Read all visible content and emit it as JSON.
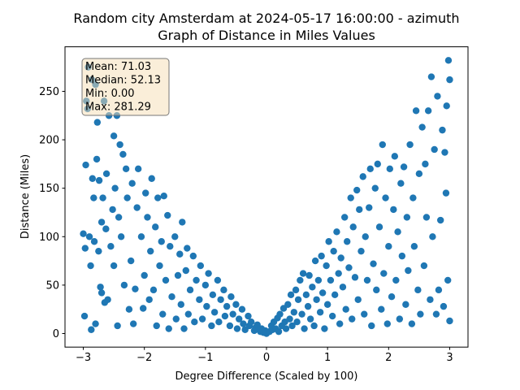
{
  "chart_data": {
    "type": "scatter",
    "title": "Random city Amsterdam at 2024-05-17 16:00:00  - azimuth",
    "subtitle": "Graph of Distance in Miles Values",
    "x_label": "Degree Difference (Scaled by 100)",
    "y_label": "Distance (Miles)",
    "annotation": [
      "Mean: 71.03",
      "Median: 52.13",
      "Min: 0.00",
      "Max: 281.29"
    ],
    "color": "#1f77b4",
    "xlim": [
      -3.3,
      3.3
    ],
    "ylim": [
      -14,
      296
    ],
    "xticks": [
      {
        "value": -3,
        "label": "−3"
      },
      {
        "value": -2,
        "label": "−2"
      },
      {
        "value": -1,
        "label": "−1"
      },
      0,
      1,
      2,
      3
    ],
    "yticks": [
      0,
      50,
      100,
      150,
      200,
      250
    ],
    "x": [
      -3.0,
      -2.98,
      -2.97,
      -2.96,
      -2.95,
      -2.93,
      -2.92,
      -2.9,
      -2.88,
      -2.87,
      -2.86,
      -2.85,
      -2.83,
      -2.82,
      -2.8,
      -2.8,
      -2.78,
      -2.77,
      -2.75,
      -2.74,
      -2.72,
      -2.7,
      -2.7,
      -2.68,
      -2.66,
      -2.65,
      -2.63,
      -2.62,
      -2.6,
      -2.58,
      -2.55,
      -2.52,
      -2.5,
      -2.5,
      -2.48,
      -2.45,
      -2.44,
      -2.42,
      -2.4,
      -2.38,
      -2.35,
      -2.33,
      -2.3,
      -2.28,
      -2.25,
      -2.22,
      -2.2,
      -2.18,
      -2.15,
      -2.12,
      -2.1,
      -2.05,
      -2.02,
      -2.0,
      -1.98,
      -1.95,
      -1.92,
      -1.9,
      -1.88,
      -1.85,
      -1.82,
      -1.8,
      -1.78,
      -1.75,
      -1.72,
      -1.7,
      -1.68,
      -1.65,
      -1.62,
      -1.6,
      -1.58,
      -1.55,
      -1.5,
      -1.48,
      -1.45,
      -1.42,
      -1.4,
      -1.38,
      -1.35,
      -1.32,
      -1.3,
      -1.28,
      -1.25,
      -1.2,
      -1.18,
      -1.15,
      -1.1,
      -1.08,
      -1.05,
      -1.0,
      -0.98,
      -0.95,
      -0.9,
      -0.88,
      -0.85,
      -0.8,
      -0.78,
      -0.75,
      -0.7,
      -0.68,
      -0.65,
      -0.6,
      -0.58,
      -0.55,
      -0.5,
      -0.48,
      -0.45,
      -0.4,
      -0.38,
      -0.35,
      -0.3,
      -0.28,
      -0.25,
      -0.2,
      -0.18,
      -0.15,
      -0.1,
      -0.08,
      -0.05,
      -0.02,
      0,
      0.05,
      0.08,
      0.1,
      0.12,
      0.15,
      0.18,
      0.2,
      0.22,
      0.25,
      0.28,
      0.3,
      0.32,
      0.35,
      0.38,
      0.4,
      0.42,
      0.45,
      0.48,
      0.5,
      0.52,
      0.55,
      0.58,
      0.6,
      0.62,
      0.65,
      0.68,
      0.7,
      0.72,
      0.75,
      0.78,
      0.8,
      0.82,
      0.85,
      0.88,
      0.9,
      0.92,
      0.95,
      0.98,
      1.0,
      1.02,
      1.05,
      1.08,
      1.1,
      1.12,
      1.15,
      1.18,
      1.2,
      1.22,
      1.25,
      1.28,
      1.3,
      1.32,
      1.35,
      1.38,
      1.4,
      1.42,
      1.45,
      1.48,
      1.5,
      1.52,
      1.55,
      1.58,
      1.6,
      1.62,
      1.65,
      1.68,
      1.7,
      1.72,
      1.75,
      1.78,
      1.8,
      1.82,
      1.85,
      1.88,
      1.9,
      1.92,
      1.95,
      1.98,
      2.0,
      2.02,
      2.05,
      2.08,
      2.1,
      2.12,
      2.15,
      2.18,
      2.2,
      2.22,
      2.25,
      2.28,
      2.3,
      2.32,
      2.35,
      2.38,
      2.4,
      2.42,
      2.45,
      2.48,
      2.5,
      2.52,
      2.55,
      2.58,
      2.6,
      2.62,
      2.65,
      2.68,
      2.7,
      2.72,
      2.75,
      2.78,
      2.8,
      2.82,
      2.85,
      2.88,
      2.9,
      2.92,
      2.94,
      2.95,
      2.97,
      2.98,
      3.0,
      3.0
    ],
    "values": [
      103,
      18,
      88,
      174,
      240,
      232,
      275,
      100,
      70,
      4,
      262,
      160,
      140,
      95,
      257,
      10,
      180,
      218,
      85,
      158,
      48,
      115,
      42,
      140,
      240,
      32,
      108,
      165,
      35,
      225,
      90,
      128,
      204,
      70,
      150,
      225,
      8,
      120,
      195,
      100,
      185,
      50,
      170,
      140,
      25,
      75,
      155,
      10,
      46,
      130,
      170,
      100,
      26,
      60,
      145,
      120,
      35,
      85,
      160,
      45,
      110,
      8,
      140,
      70,
      95,
      20,
      142,
      55,
      122,
      5,
      90,
      38,
      100,
      15,
      60,
      82,
      30,
      115,
      5,
      65,
      88,
      20,
      45,
      80,
      12,
      55,
      35,
      70,
      15,
      50,
      28,
      62,
      8,
      40,
      22,
      55,
      12,
      35,
      45,
      18,
      28,
      8,
      38,
      20,
      30,
      5,
      15,
      25,
      10,
      4,
      18,
      8,
      12,
      3,
      6,
      9,
      2,
      5,
      1,
      3,
      0,
      2,
      8,
      4,
      12,
      5,
      16,
      2,
      20,
      8,
      26,
      12,
      5,
      30,
      15,
      40,
      8,
      22,
      45,
      12,
      35,
      55,
      20,
      62,
      5,
      40,
      28,
      60,
      15,
      48,
      8,
      75,
      35,
      55,
      22,
      80,
      42,
      5,
      70,
      30,
      95,
      55,
      18,
      85,
      40,
      105,
      62,
      10,
      78,
      48,
      120,
      25,
      95,
      68,
      140,
      15,
      110,
      58,
      148,
      35,
      128,
      85,
      162,
      20,
      100,
      55,
      130,
      170,
      8,
      72,
      150,
      45,
      175,
      110,
      25,
      195,
      62,
      140,
      10,
      90,
      170,
      38,
      128,
      183,
      55,
      105,
      15,
      155,
      80,
      172,
      30,
      120,
      65,
      195,
      10,
      140,
      90,
      230,
      45,
      165,
      20,
      213,
      70,
      175,
      120,
      230,
      35,
      265,
      100,
      190,
      20,
      245,
      45,
      117,
      210,
      28,
      187,
      145,
      235,
      55,
      282,
      262,
      13
    ]
  }
}
